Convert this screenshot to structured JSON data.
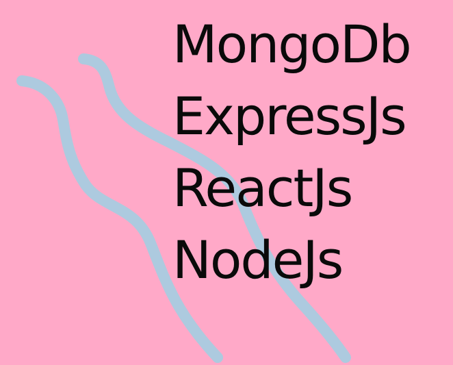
{
  "stack": {
    "items": [
      {
        "label": "MongoDb"
      },
      {
        "label": "ExpressJs"
      },
      {
        "label": "ReactJs"
      },
      {
        "label": "NodeJs"
      }
    ]
  },
  "colors": {
    "background": "#ffa9c8",
    "wave": "#a9cbe0",
    "text": "#0a0a0a"
  }
}
